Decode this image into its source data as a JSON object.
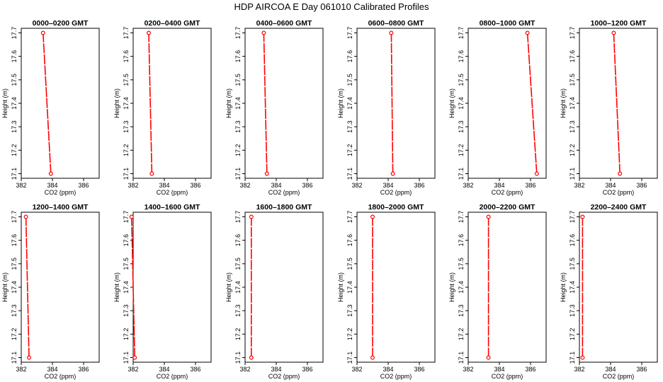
{
  "title": "HDP  AIRCOA E  Day 061010  Calibrated Profiles",
  "chart_data": {
    "type": "line",
    "layout": "2x6 small multiples",
    "xlabel": "CO2 (ppm)",
    "ylabel": "Height (m)",
    "xlim": [
      382,
      387
    ],
    "ylim": [
      17.1,
      17.7
    ],
    "x_ticks": [
      "382",
      "384",
      "386"
    ],
    "y_ticks": [
      "17.1",
      "17.2",
      "17.3",
      "17.4",
      "17.5",
      "17.6",
      "17.7"
    ],
    "heights": [
      17.1,
      17.7
    ],
    "line_color": "#ff0000",
    "marker": "open-circle",
    "panels": [
      {
        "title": "0000–0200 GMT",
        "co2": [
          383.9,
          383.4
        ]
      },
      {
        "title": "0200–0400 GMT",
        "co2": [
          383.2,
          383.0
        ]
      },
      {
        "title": "0400–0600 GMT",
        "co2": [
          383.4,
          383.2
        ]
      },
      {
        "title": "0600–0800 GMT",
        "co2": [
          384.3,
          384.2
        ]
      },
      {
        "title": "0800–1000 GMT",
        "co2": [
          386.4,
          385.8
        ]
      },
      {
        "title": "1000–1200 GMT",
        "co2": [
          384.6,
          384.2
        ]
      },
      {
        "title": "1200–1400 GMT",
        "co2": [
          382.5,
          382.3
        ]
      },
      {
        "title": "1400–1600 GMT",
        "co2": [
          382.1,
          381.9
        ]
      },
      {
        "title": "1600–1800 GMT",
        "co2": [
          382.4,
          382.4
        ]
      },
      {
        "title": "1800–2000 GMT",
        "co2": [
          383.0,
          383.0
        ]
      },
      {
        "title": "2000–2200 GMT",
        "co2": [
          383.3,
          383.3
        ]
      },
      {
        "title": "2200–2400 GMT",
        "co2": [
          382.2,
          382.2
        ]
      }
    ]
  }
}
